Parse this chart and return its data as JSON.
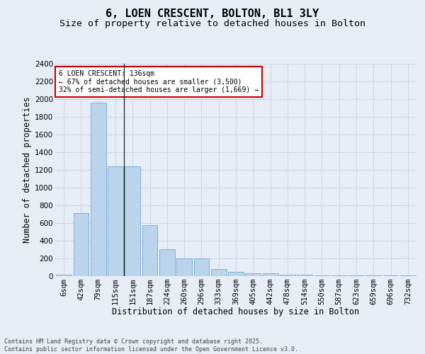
{
  "title_line1": "6, LOEN CRESCENT, BOLTON, BL1 3LY",
  "title_line2": "Size of property relative to detached houses in Bolton",
  "xlabel": "Distribution of detached houses by size in Bolton",
  "ylabel": "Number of detached properties",
  "bar_values": [
    15,
    710,
    1960,
    1240,
    1240,
    575,
    305,
    200,
    200,
    80,
    45,
    35,
    35,
    20,
    20,
    5,
    5,
    5,
    5,
    5,
    5
  ],
  "bar_labels": [
    "6sqm",
    "42sqm",
    "79sqm",
    "115sqm",
    "151sqm",
    "187sqm",
    "224sqm",
    "260sqm",
    "296sqm",
    "333sqm",
    "369sqm",
    "405sqm",
    "442sqm",
    "478sqm",
    "514sqm",
    "550sqm",
    "587sqm",
    "623sqm",
    "659sqm",
    "696sqm",
    "732sqm"
  ],
  "bar_color": "#bad4ec",
  "bar_edge_color": "#6fa8d4",
  "ylim": [
    0,
    2400
  ],
  "yticks": [
    0,
    200,
    400,
    600,
    800,
    1000,
    1200,
    1400,
    1600,
    1800,
    2000,
    2200,
    2400
  ],
  "property_line_x": 3.5,
  "annotation_text": "6 LOEN CRESCENT: 136sqm\n← 67% of detached houses are smaller (3,500)\n32% of semi-detached houses are larger (1,669) →",
  "annotation_box_color": "#ffffff",
  "annotation_box_edge": "#cc0000",
  "grid_color": "#c8d4e8",
  "background_color": "#e8edf5",
  "footer_line1": "Contains HM Land Registry data © Crown copyright and database right 2025.",
  "footer_line2": "Contains public sector information licensed under the Open Government Licence v3.0.",
  "title_fontsize": 11,
  "subtitle_fontsize": 9.5,
  "axis_label_fontsize": 8.5,
  "tick_fontsize": 7.5,
  "annotation_fontsize": 7,
  "footer_fontsize": 6
}
